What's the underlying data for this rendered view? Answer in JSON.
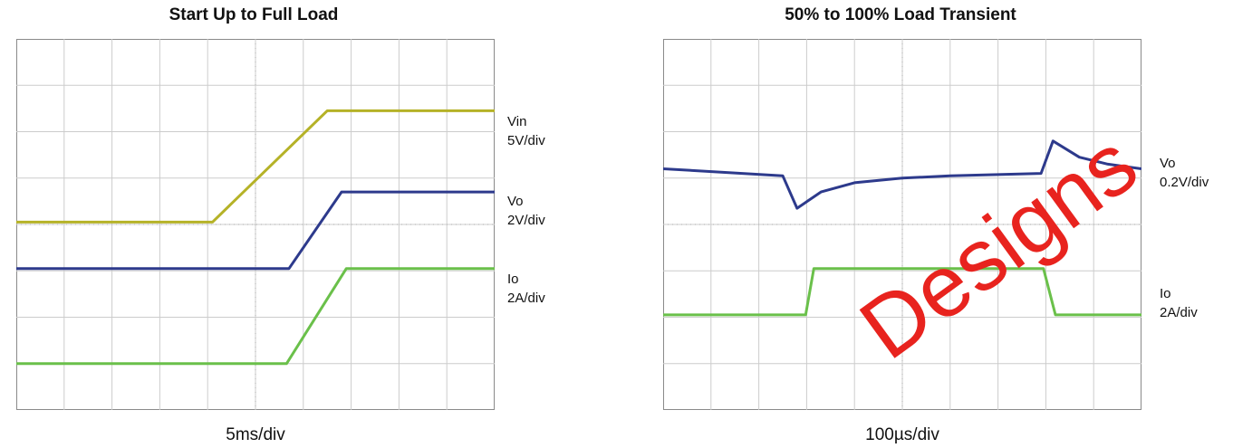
{
  "chart_data": [
    {
      "type": "line",
      "title": "Start Up to Full Load",
      "xlabel": "5ms/div",
      "x_divisions": 10,
      "y_divisions": 8,
      "grid": true,
      "colors": {
        "Vin": "#b5b227",
        "Vo": "#2d3a8c",
        "Io": "#6ac04a"
      },
      "series": [
        {
          "name": "Vin",
          "scale": "5V/div",
          "color": "#b5b227",
          "points": [
            [
              0,
              4.05
            ],
            [
              4.1,
              4.05
            ],
            [
              6.5,
              6.45
            ],
            [
              10,
              6.45
            ]
          ]
        },
        {
          "name": "Vo",
          "scale": "2V/div",
          "color": "#2d3a8c",
          "points": [
            [
              0,
              3.05
            ],
            [
              5.7,
              3.05
            ],
            [
              6.8,
              4.7
            ],
            [
              10,
              4.7
            ]
          ]
        },
        {
          "name": "Io",
          "scale": "2A/div",
          "color": "#6ac04a",
          "points": [
            [
              0,
              1.0
            ],
            [
              5.65,
              1.0
            ],
            [
              6.9,
              3.05
            ],
            [
              10,
              3.05
            ]
          ]
        }
      ]
    },
    {
      "type": "line",
      "title": "50% to 100% Load Transient",
      "xlabel": "100µs/div",
      "x_divisions": 10,
      "y_divisions": 8,
      "grid": true,
      "colors": {
        "Vo": "#2d3a8c",
        "Io": "#6ac04a"
      },
      "series": [
        {
          "name": "Vo",
          "scale": "0.2V/div",
          "color": "#2d3a8c",
          "points": [
            [
              0,
              5.2
            ],
            [
              2.5,
              5.05
            ],
            [
              2.8,
              4.35
            ],
            [
              3.3,
              4.7
            ],
            [
              4,
              4.9
            ],
            [
              5,
              5.0
            ],
            [
              6,
              5.05
            ],
            [
              7.9,
              5.1
            ],
            [
              8.15,
              5.8
            ],
            [
              8.7,
              5.45
            ],
            [
              9.3,
              5.3
            ],
            [
              10,
              5.2
            ]
          ]
        },
        {
          "name": "Io",
          "scale": "2A/div",
          "color": "#6ac04a",
          "points": [
            [
              0,
              2.05
            ],
            [
              2.98,
              2.05
            ],
            [
              3.15,
              3.05
            ],
            [
              7.95,
              3.05
            ],
            [
              8.2,
              2.05
            ],
            [
              10,
              2.05
            ]
          ]
        }
      ]
    }
  ],
  "watermark": "Designs"
}
